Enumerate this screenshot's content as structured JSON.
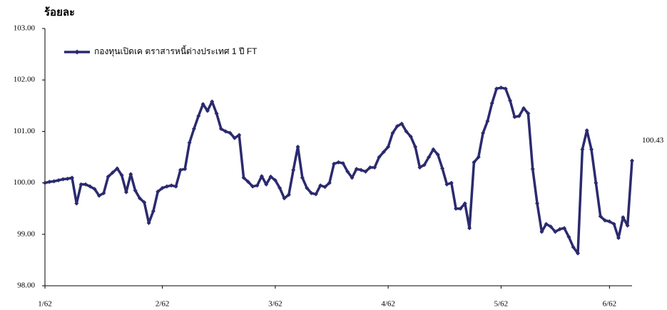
{
  "chart_data": {
    "type": "line",
    "title": "ร้อยละ",
    "categories": [
      "1/62",
      null,
      null,
      null,
      null,
      null,
      null,
      null,
      null,
      null,
      null,
      null,
      null,
      null,
      null,
      null,
      null,
      null,
      null,
      null,
      null,
      null,
      null,
      null,
      null,
      null,
      "2/62",
      null,
      null,
      null,
      null,
      null,
      null,
      null,
      null,
      null,
      null,
      null,
      null,
      null,
      null,
      null,
      null,
      null,
      null,
      null,
      null,
      null,
      null,
      null,
      null,
      "3/62",
      null,
      null,
      null,
      null,
      null,
      null,
      null,
      null,
      null,
      null,
      null,
      null,
      null,
      null,
      null,
      null,
      null,
      null,
      null,
      null,
      null,
      null,
      null,
      null,
      "4/62",
      null,
      null,
      null,
      null,
      null,
      null,
      null,
      null,
      null,
      null,
      null,
      null,
      null,
      null,
      null,
      null,
      null,
      null,
      null,
      null,
      null,
      null,
      null,
      null,
      "5/62",
      null,
      null,
      null,
      null,
      null,
      null,
      null,
      null,
      null,
      null,
      null,
      null,
      null,
      null,
      null,
      null,
      null,
      null,
      null,
      null,
      null,
      null,
      null,
      "6/62",
      null,
      null,
      null,
      null,
      null
    ],
    "series": [
      {
        "name": "กองทุนเปิดเค ตราสารหนี้ต่างประเทศ 1 ปี FT",
        "color": "#2b2a6e",
        "values": [
          100.0,
          100.02,
          100.03,
          100.05,
          100.07,
          100.08,
          100.1,
          99.6,
          99.97,
          99.97,
          99.93,
          99.88,
          99.75,
          99.8,
          100.12,
          100.2,
          100.28,
          100.15,
          99.82,
          100.17,
          99.85,
          99.7,
          99.62,
          99.22,
          99.45,
          99.83,
          99.9,
          99.93,
          99.95,
          99.93,
          100.25,
          100.27,
          100.78,
          101.05,
          101.3,
          101.53,
          101.4,
          101.58,
          101.35,
          101.05,
          101.0,
          100.97,
          100.87,
          100.93,
          100.1,
          100.02,
          99.93,
          99.95,
          100.13,
          99.97,
          100.12,
          100.05,
          99.9,
          99.7,
          99.77,
          100.25,
          100.7,
          100.1,
          99.9,
          99.8,
          99.78,
          99.95,
          99.92,
          100.0,
          100.37,
          100.4,
          100.38,
          100.22,
          100.1,
          100.27,
          100.25,
          100.22,
          100.3,
          100.3,
          100.5,
          100.6,
          100.7,
          100.97,
          101.1,
          101.15,
          101.0,
          100.9,
          100.7,
          100.3,
          100.35,
          100.5,
          100.65,
          100.55,
          100.28,
          99.97,
          100.0,
          99.5,
          99.5,
          99.6,
          99.12,
          100.4,
          100.5,
          100.97,
          101.2,
          101.55,
          101.83,
          101.85,
          101.83,
          101.6,
          101.28,
          101.3,
          101.45,
          101.35,
          100.27,
          99.6,
          99.05,
          99.2,
          99.15,
          99.05,
          99.1,
          99.12,
          98.95,
          98.75,
          98.63,
          100.65,
          101.02,
          100.65,
          100.0,
          99.35,
          99.27,
          99.25,
          99.2,
          98.93,
          99.33,
          99.17,
          100.43
        ]
      }
    ],
    "ylim": [
      98,
      103
    ],
    "yticks": [
      {
        "value": 98,
        "label": "98.00"
      },
      {
        "value": 99,
        "label": "99.00"
      },
      {
        "value": 100,
        "label": "100.00"
      },
      {
        "value": 101,
        "label": "101.00"
      },
      {
        "value": 102,
        "label": "102.00"
      },
      {
        "value": 103,
        "label": "103.00"
      }
    ],
    "legend": "top-left"
  }
}
